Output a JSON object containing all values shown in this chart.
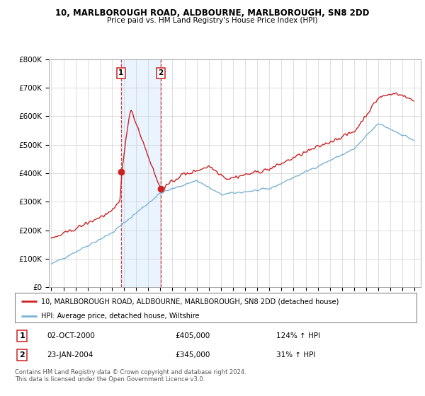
{
  "title": "10, MARLBOROUGH ROAD, ALDBOURNE, MARLBOROUGH, SN8 2DD",
  "subtitle": "Price paid vs. HM Land Registry's House Price Index (HPI)",
  "ylim": [
    0,
    800000
  ],
  "yticks": [
    0,
    100000,
    200000,
    300000,
    400000,
    500000,
    600000,
    700000,
    800000
  ],
  "ytick_labels": [
    "£0",
    "£100K",
    "£200K",
    "£300K",
    "£400K",
    "£500K",
    "£600K",
    "£700K",
    "£800K"
  ],
  "hpi_color": "#7ab3d4",
  "price_color": "#cc2222",
  "transaction1": {
    "date": "02-OCT-2000",
    "price": 405000,
    "hpi_pct": "124%",
    "label": "1"
  },
  "transaction2": {
    "date": "23-JAN-2004",
    "price": 345000,
    "hpi_pct": "31%",
    "label": "2"
  },
  "legend_property": "10, MARLBOROUGH ROAD, ALDBOURNE, MARLBOROUGH, SN8 2DD (detached house)",
  "legend_hpi": "HPI: Average price, detached house, Wiltshire",
  "footnote": "Contains HM Land Registry data © Crown copyright and database right 2024.\nThis data is licensed under the Open Government Licence v3.0.",
  "trans1_x": 2000.75,
  "trans1_y": 405000,
  "trans2_x": 2004.05,
  "trans2_y": 345000,
  "shaded_start": 2000.75,
  "shaded_end": 2004.05,
  "xtick_years": [
    1995,
    1996,
    1997,
    1998,
    1999,
    2000,
    2001,
    2002,
    2003,
    2004,
    2005,
    2006,
    2007,
    2008,
    2009,
    2010,
    2011,
    2012,
    2013,
    2014,
    2015,
    2016,
    2017,
    2018,
    2019,
    2020,
    2021,
    2022,
    2023,
    2024,
    2025
  ]
}
